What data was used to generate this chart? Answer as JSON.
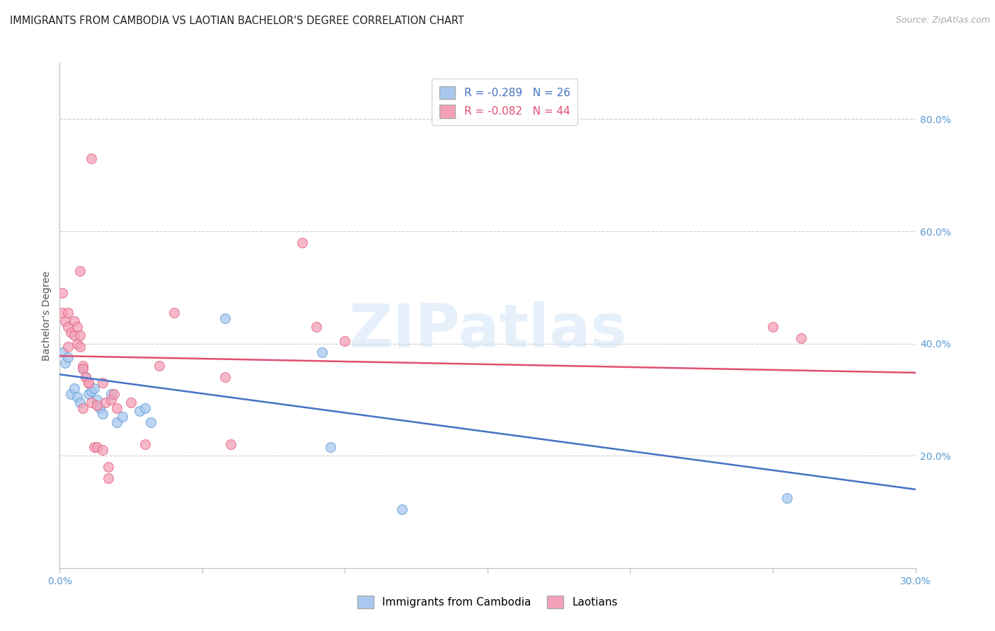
{
  "title": "IMMIGRANTS FROM CAMBODIA VS LAOTIAN BACHELOR'S DEGREE CORRELATION CHART",
  "source": "Source: ZipAtlas.com",
  "ylabel": "Bachelor's Degree",
  "watermark": "ZIPatlas",
  "legend_entries": [
    {
      "label": "R = -0.289   N = 26",
      "color": "#a8c8f0"
    },
    {
      "label": "R = -0.082   N = 44",
      "color": "#f4a0b8"
    }
  ],
  "legend_bottom": [
    {
      "label": "Immigrants from Cambodia",
      "color": "#a8c8f0"
    },
    {
      "label": "Laotians",
      "color": "#f4a0b8"
    }
  ],
  "xlim": [
    0.0,
    0.3
  ],
  "ylim": [
    0.0,
    0.9
  ],
  "yticks": [
    0.2,
    0.4,
    0.6,
    0.8
  ],
  "ytick_labels": [
    "20.0%",
    "40.0%",
    "60.0%",
    "80.0%"
  ],
  "xticks": [
    0.0,
    0.05,
    0.1,
    0.15,
    0.2,
    0.25,
    0.3
  ],
  "xtick_labels": [
    "0.0%",
    "",
    "",
    "",
    "",
    "",
    "30.0%"
  ],
  "axis_color": "#5b9bd5",
  "grid_color": "#cccccc",
  "background_color": "#ffffff",
  "blue_scatter": [
    [
      0.001,
      0.385
    ],
    [
      0.002,
      0.365
    ],
    [
      0.003,
      0.375
    ],
    [
      0.004,
      0.31
    ],
    [
      0.005,
      0.32
    ],
    [
      0.006,
      0.305
    ],
    [
      0.007,
      0.295
    ],
    [
      0.008,
      0.355
    ],
    [
      0.009,
      0.34
    ],
    [
      0.01,
      0.31
    ],
    [
      0.011,
      0.315
    ],
    [
      0.012,
      0.32
    ],
    [
      0.013,
      0.3
    ],
    [
      0.014,
      0.285
    ],
    [
      0.015,
      0.275
    ],
    [
      0.018,
      0.31
    ],
    [
      0.02,
      0.26
    ],
    [
      0.022,
      0.27
    ],
    [
      0.028,
      0.28
    ],
    [
      0.03,
      0.285
    ],
    [
      0.032,
      0.26
    ],
    [
      0.058,
      0.445
    ],
    [
      0.092,
      0.385
    ],
    [
      0.095,
      0.215
    ],
    [
      0.12,
      0.105
    ],
    [
      0.255,
      0.125
    ]
  ],
  "pink_scatter": [
    [
      0.001,
      0.49
    ],
    [
      0.001,
      0.455
    ],
    [
      0.002,
      0.44
    ],
    [
      0.003,
      0.43
    ],
    [
      0.003,
      0.455
    ],
    [
      0.004,
      0.42
    ],
    [
      0.005,
      0.44
    ],
    [
      0.005,
      0.415
    ],
    [
      0.006,
      0.43
    ],
    [
      0.006,
      0.4
    ],
    [
      0.007,
      0.395
    ],
    [
      0.007,
      0.415
    ],
    [
      0.007,
      0.53
    ],
    [
      0.008,
      0.36
    ],
    [
      0.008,
      0.355
    ],
    [
      0.009,
      0.34
    ],
    [
      0.01,
      0.33
    ],
    [
      0.01,
      0.33
    ],
    [
      0.011,
      0.295
    ],
    [
      0.012,
      0.215
    ],
    [
      0.013,
      0.29
    ],
    [
      0.013,
      0.215
    ],
    [
      0.015,
      0.33
    ],
    [
      0.015,
      0.21
    ],
    [
      0.016,
      0.295
    ],
    [
      0.017,
      0.18
    ],
    [
      0.017,
      0.16
    ],
    [
      0.018,
      0.3
    ],
    [
      0.019,
      0.31
    ],
    [
      0.02,
      0.285
    ],
    [
      0.025,
      0.295
    ],
    [
      0.03,
      0.22
    ],
    [
      0.035,
      0.36
    ],
    [
      0.04,
      0.455
    ],
    [
      0.058,
      0.34
    ],
    [
      0.06,
      0.22
    ],
    [
      0.011,
      0.73
    ],
    [
      0.085,
      0.58
    ],
    [
      0.09,
      0.43
    ],
    [
      0.1,
      0.405
    ],
    [
      0.25,
      0.43
    ],
    [
      0.26,
      0.41
    ],
    [
      0.003,
      0.395
    ],
    [
      0.008,
      0.285
    ]
  ],
  "blue_line_x": [
    0.0,
    0.3
  ],
  "blue_line_y": [
    0.345,
    0.14
  ],
  "pink_line_x": [
    0.0,
    0.3
  ],
  "pink_line_y": [
    0.378,
    0.348
  ],
  "marker_size": 100,
  "blue_color": "#a8c8f0",
  "pink_color": "#f4a0b8",
  "blue_edge_color": "#5b9bd5",
  "pink_edge_color": "#e06080",
  "line_blue_color": "#4472c4",
  "line_pink_color": "#e05070",
  "title_fontsize": 10.5,
  "axis_label_fontsize": 10,
  "tick_fontsize": 10
}
